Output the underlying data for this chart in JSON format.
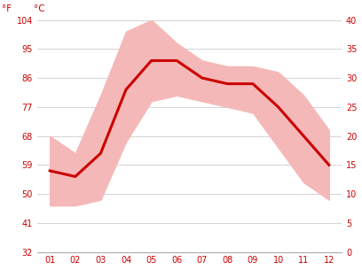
{
  "months": [
    1,
    2,
    3,
    4,
    5,
    6,
    7,
    8,
    9,
    10,
    11,
    12
  ],
  "month_labels": [
    "01",
    "02",
    "03",
    "04",
    "05",
    "06",
    "07",
    "08",
    "09",
    "10",
    "11",
    "12"
  ],
  "mean_temp_c": [
    14,
    13,
    17,
    28,
    33,
    33,
    30,
    29,
    29,
    25,
    20,
    15
  ],
  "max_temp_c": [
    20,
    17,
    27,
    38,
    40,
    36,
    33,
    32,
    32,
    31,
    27,
    21
  ],
  "min_temp_c": [
    8,
    8,
    9,
    19,
    26,
    27,
    26,
    25,
    24,
    18,
    12,
    9
  ],
  "y_ticks_c": [
    0,
    5,
    10,
    15,
    20,
    25,
    30,
    35,
    40
  ],
  "y_ticks_f": [
    32,
    41,
    50,
    59,
    68,
    77,
    86,
    95,
    104
  ],
  "ylim_c": [
    0,
    40
  ],
  "xlim": [
    0.5,
    12.5
  ],
  "band_color": "#f5b8b8",
  "line_color": "#cc0000",
  "line_width": 2.2,
  "bg_color": "#ffffff",
  "grid_color": "#cccccc",
  "tick_color": "#cc0000",
  "label_f": "°F",
  "label_c": "°C",
  "fontsize_ticks": 7,
  "fontsize_labels": 7.5
}
